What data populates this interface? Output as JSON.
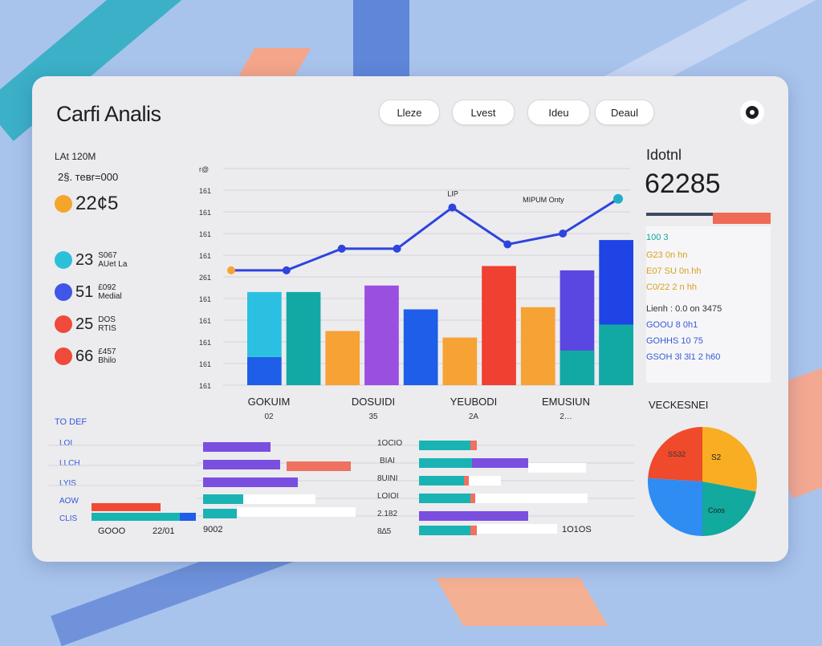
{
  "title": "Carfi Analis",
  "nav_pills": [
    "Lleze",
    "Lvest",
    "Ideu",
    "Deaul"
  ],
  "left_panel": {
    "header": "LAt 120M",
    "subheader": "2§. тевr=000",
    "items": [
      {
        "value": "22¢5",
        "sub1": "",
        "sub2": "",
        "color": "#f4a62a"
      },
      {
        "value": "23",
        "sub1": "S067",
        "sub2": "AUet La",
        "color": "#2bc0d9"
      },
      {
        "value": "51",
        "sub1": "£092",
        "sub2": "Medial",
        "color": "#3f56e6"
      },
      {
        "value": "25",
        "sub1": "DOS",
        "sub2": "RTIS",
        "color": "#ef4a3a"
      },
      {
        "value": "66",
        "sub1": "£457",
        "sub2": "Bhilo",
        "color": "#ef4a3a"
      }
    ]
  },
  "main_chart": {
    "ytick_labels": [
      "r@",
      "161",
      "161",
      "161",
      "161",
      "261",
      "161",
      "161",
      "161",
      "161",
      "161"
    ],
    "line_label_a": "LIP",
    "line_label_b": "MIPUM Onty",
    "x_group_labels": [
      "GOKUIM",
      "DOSUIDI",
      "YEUBODI",
      "EMUSIUN"
    ],
    "x_group_sublabels": [
      "02",
      "35",
      "2A",
      "2…"
    ]
  },
  "chart_data": {
    "type": "bar",
    "ylim": [
      0,
      10
    ],
    "line_series": {
      "x": [
        0,
        1,
        2,
        3,
        4,
        5,
        6,
        7
      ],
      "values": [
        5.3,
        5.3,
        6.3,
        6.3,
        8.2,
        6.5,
        7.0,
        8.6
      ]
    },
    "bars": [
      {
        "x": 0,
        "value": 1.3,
        "color": "#1e5ee8"
      },
      {
        "x": 0,
        "value": 3.0,
        "color": "#2bc0e2",
        "base": 1.3
      },
      {
        "x": 1,
        "value": 4.3,
        "color": "#12a9a5"
      },
      {
        "x": 2,
        "value": 2.5,
        "color": "#f6a234"
      },
      {
        "x": 3,
        "value": 4.6,
        "color": "#9b4fe0"
      },
      {
        "x": 4,
        "value": 3.5,
        "color": "#1e5ee8"
      },
      {
        "x": 5,
        "value": 2.2,
        "color": "#f6a234"
      },
      {
        "x": 6,
        "value": 5.5,
        "color": "#ef4032"
      },
      {
        "x": 7,
        "value": 3.6,
        "color": "#f6a234"
      },
      {
        "x": 8,
        "value": 5.3,
        "color": "#5a46e0"
      },
      {
        "x": 8,
        "value": 1.6,
        "color": "#12a9a5"
      },
      {
        "x": 9,
        "value": 6.7,
        "color": "#1e44e6"
      },
      {
        "x": 9,
        "value": 2.8,
        "color": "#12a9a5"
      }
    ]
  },
  "right_panel": {
    "label": "Idotnl",
    "big_value": "62285",
    "rows": [
      {
        "text": "100 3",
        "color": "#11a4a0"
      },
      {
        "text": "G23 0n hn",
        "color": "#d8a01d"
      },
      {
        "text": "E07 SU 0n.hh",
        "color": "#d8a01d"
      },
      {
        "text": "C0/22 2 n hh",
        "color": "#d8a01d"
      },
      {
        "text": "Lienh : 0.0 on 3475",
        "color": "#333333"
      },
      {
        "text": "GOOU 8 0h1",
        "color": "#3559d8"
      },
      {
        "text": "GOHHS 10 75",
        "color": "#3559d8"
      },
      {
        "text": "GSOH 3l 3l1 2 h60",
        "color": "#3559d8"
      }
    ]
  },
  "bottom": {
    "left_header": "TO DEF",
    "left_labels": [
      "LOI",
      "LLCH",
      "LYIS",
      "AOW",
      "CLIS"
    ],
    "left_footer": [
      "GOOO",
      "22/01"
    ],
    "mid_footer": "9002",
    "mid_labels": [
      "1OCIO",
      "BIAI",
      "8UINI",
      "LOIOI",
      "2.182",
      "8∆5"
    ],
    "right_footer": "1O1OS",
    "pie_title": "VECKESNEI",
    "pie_labels": [
      "SS32",
      "S2",
      "Coos"
    ]
  },
  "pie_data": {
    "type": "pie",
    "values": [
      28,
      22,
      26,
      24
    ],
    "colors": [
      "#f8ad22",
      "#12a99e",
      "#2f8cf2",
      "#ef4a2b"
    ]
  }
}
